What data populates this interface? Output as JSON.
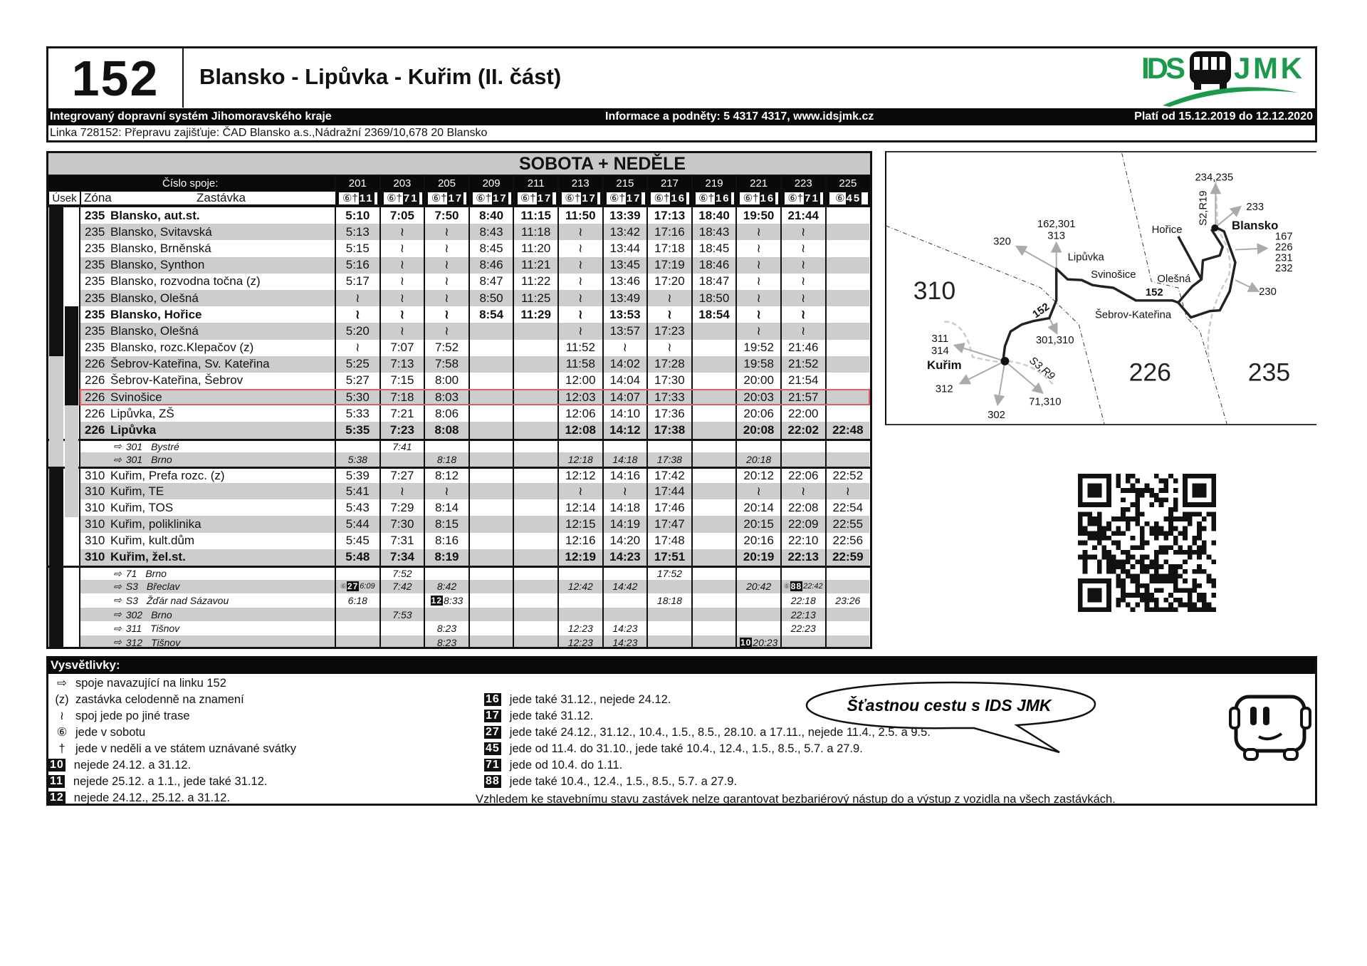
{
  "header": {
    "line_number": "152",
    "title": "Blansko - Lipůvka - Kuřim (II. část)",
    "system_name": "Integrovaný dopravní systém Jihomoravského kraje",
    "info": "Informace a podněty: 5 4317 4317, www.idsjmk.cz",
    "validity": "Platí od 15.12.2019 do 12.12.2020",
    "operator": "Linka 728152: Přepravu zajišťuje: ČAD Blansko a.s.,Nádražní 2369/10,678 20 Blansko",
    "logo_text": "IDS JMK",
    "logo_colors": {
      "green": "#1a9a4a",
      "black": "#111111"
    }
  },
  "timetable": {
    "days_title": "SOBOTA + NEDĚLE",
    "trip_label": "Číslo spoje:",
    "col_usek": "Úsek",
    "col_zona": "Zóna",
    "col_stop": "Zastávka",
    "highlight_color": "#e06060",
    "trips": [
      {
        "num": "201",
        "days": "⑥†",
        "badge": "11"
      },
      {
        "num": "203",
        "days": "⑥†",
        "badge": "71"
      },
      {
        "num": "205",
        "days": "⑥†",
        "badge": "17"
      },
      {
        "num": "209",
        "days": "⑥†",
        "badge": "17"
      },
      {
        "num": "211",
        "days": "⑥†",
        "badge": "17"
      },
      {
        "num": "213",
        "days": "⑥†",
        "badge": "17"
      },
      {
        "num": "215",
        "days": "⑥†",
        "badge": "17"
      },
      {
        "num": "217",
        "days": "⑥†",
        "badge": "16"
      },
      {
        "num": "219",
        "days": "⑥†",
        "badge": "16"
      },
      {
        "num": "221",
        "days": "⑥†",
        "badge": "16"
      },
      {
        "num": "223",
        "days": "⑥†",
        "badge": "71"
      },
      {
        "num": "225",
        "days": "⑥",
        "badge": "45"
      }
    ],
    "sections": [
      {
        "type": "stops",
        "rows": [
          {
            "zone": "235",
            "stop": "Blansko, aut.st.",
            "bold": true,
            "times": [
              "5:10",
              "7:05",
              "7:50",
              "8:40",
              "11:15",
              "11:50",
              "13:39",
              "17:13",
              "18:40",
              "19:50",
              "21:44",
              ""
            ]
          },
          {
            "zone": "235",
            "stop": "Blansko, Svitavská",
            "times": [
              "5:13",
              "≀",
              "≀",
              "8:43",
              "11:18",
              "≀",
              "13:42",
              "17:16",
              "18:43",
              "≀",
              "≀",
              ""
            ]
          },
          {
            "zone": "235",
            "stop": "Blansko, Brněnská",
            "times": [
              "5:15",
              "≀",
              "≀",
              "8:45",
              "11:20",
              "≀",
              "13:44",
              "17:18",
              "18:45",
              "≀",
              "≀",
              ""
            ]
          },
          {
            "zone": "235",
            "stop": "Blansko, Synthon",
            "times": [
              "5:16",
              "≀",
              "≀",
              "8:46",
              "11:21",
              "≀",
              "13:45",
              "17:19",
              "18:46",
              "≀",
              "≀",
              ""
            ]
          },
          {
            "zone": "235",
            "stop": "Blansko, rozvodna točna (z)",
            "times": [
              "5:17",
              "≀",
              "≀",
              "8:47",
              "11:22",
              "≀",
              "13:46",
              "17:20",
              "18:47",
              "≀",
              "≀",
              ""
            ]
          },
          {
            "zone": "235",
            "stop": "Blansko, Olešná",
            "times": [
              "≀",
              "≀",
              "≀",
              "8:50",
              "11:25",
              "≀",
              "13:49",
              "≀",
              "18:50",
              "≀",
              "≀",
              ""
            ]
          },
          {
            "zone": "235",
            "stop": "Blansko, Hořice",
            "bold": true,
            "times": [
              "≀",
              "≀",
              "≀",
              "8:54",
              "11:29",
              "≀",
              "13:53",
              "≀",
              "18:54",
              "≀",
              "≀",
              ""
            ]
          },
          {
            "zone": "235",
            "stop": "Blansko, Olešná",
            "times": [
              "5:20",
              "≀",
              "≀",
              "",
              "",
              "≀",
              "13:57",
              "17:23",
              "",
              "≀",
              "≀",
              ""
            ]
          },
          {
            "zone": "235",
            "stop": "Blansko, rozc.Klepačov (z)",
            "times": [
              "≀",
              "7:07",
              "7:52",
              "",
              "",
              "11:52",
              "≀",
              "≀",
              "",
              "19:52",
              "21:46",
              ""
            ]
          },
          {
            "zone": "226",
            "stop": "Šebrov-Kateřina, Sv. Kateřina",
            "times": [
              "5:25",
              "7:13",
              "7:58",
              "",
              "",
              "11:58",
              "14:02",
              "17:28",
              "",
              "19:58",
              "21:52",
              ""
            ]
          },
          {
            "zone": "226",
            "stop": "Šebrov-Kateřina, Šebrov",
            "times": [
              "5:27",
              "7:15",
              "8:00",
              "",
              "",
              "12:00",
              "14:04",
              "17:30",
              "",
              "20:00",
              "21:54",
              ""
            ]
          },
          {
            "zone": "226",
            "stop": "Svinošice",
            "highlighted": true,
            "times": [
              "5:30",
              "7:18",
              "8:03",
              "",
              "",
              "12:03",
              "14:07",
              "17:33",
              "",
              "20:03",
              "21:57",
              ""
            ]
          },
          {
            "zone": "226",
            "stop": "Lipůvka, ZŠ",
            "times": [
              "5:33",
              "7:21",
              "8:06",
              "",
              "",
              "12:06",
              "14:10",
              "17:36",
              "",
              "20:06",
              "22:00",
              ""
            ]
          },
          {
            "zone": "226",
            "stop": "Lipůvka",
            "bold": true,
            "times": [
              "5:35",
              "7:23",
              "8:08",
              "",
              "",
              "12:08",
              "14:12",
              "17:38",
              "",
              "20:08",
              "22:02",
              "22:48"
            ]
          }
        ]
      },
      {
        "type": "connections",
        "rows": [
          {
            "arrow": "⇨",
            "line": "301",
            "dest": "Bystré",
            "times": [
              "",
              "7:41",
              "",
              "",
              "",
              "",
              "",
              "",
              "",
              "",
              "",
              ""
            ]
          },
          {
            "arrow": "⇨",
            "line": "301",
            "dest": "Brno",
            "times": [
              "5:38",
              "",
              "8:18",
              "",
              "",
              "12:18",
              "14:18",
              "17:38",
              "",
              "20:18",
              "",
              ""
            ]
          }
        ]
      },
      {
        "type": "stops",
        "rows": [
          {
            "zone": "310",
            "stop": "Kuřim, Prefa rozc. (z)",
            "times": [
              "5:39",
              "7:27",
              "8:12",
              "",
              "",
              "12:12",
              "14:16",
              "17:42",
              "",
              "20:12",
              "22:06",
              "22:52"
            ]
          },
          {
            "zone": "310",
            "stop": "Kuřim, TE",
            "times": [
              "5:41",
              "≀",
              "≀",
              "",
              "",
              "≀",
              "≀",
              "17:44",
              "",
              "≀",
              "≀",
              "≀"
            ]
          },
          {
            "zone": "310",
            "stop": "Kuřim, TOS",
            "times": [
              "5:43",
              "7:29",
              "8:14",
              "",
              "",
              "12:14",
              "14:18",
              "17:46",
              "",
              "20:14",
              "22:08",
              "22:54"
            ]
          },
          {
            "zone": "310",
            "stop": "Kuřim, poliklinika",
            "times": [
              "5:44",
              "7:30",
              "8:15",
              "",
              "",
              "12:15",
              "14:19",
              "17:47",
              "",
              "20:15",
              "22:09",
              "22:55"
            ]
          },
          {
            "zone": "310",
            "stop": "Kuřim, kult.dům",
            "times": [
              "5:45",
              "7:31",
              "8:16",
              "",
              "",
              "12:16",
              "14:20",
              "17:48",
              "",
              "20:16",
              "22:10",
              "22:56"
            ]
          },
          {
            "zone": "310",
            "stop": "Kuřim, žel.st.",
            "bold": true,
            "times": [
              "5:48",
              "7:34",
              "8:19",
              "",
              "",
              "12:19",
              "14:23",
              "17:51",
              "",
              "20:19",
              "22:13",
              "22:59"
            ]
          }
        ]
      },
      {
        "type": "connections",
        "rows": [
          {
            "arrow": "⇨",
            "line": "71",
            "dest": "Brno",
            "times": [
              "",
              "7:52",
              "",
              "",
              "",
              "",
              "",
              "17:52",
              "",
              "",
              "",
              ""
            ]
          },
          {
            "arrow": "⇨",
            "line": "S3",
            "dest": "Břeclav",
            "times": [
              {
                "sym": "⑥",
                "badge": "27",
                "time": "6:09"
              },
              "7:42",
              "8:42",
              "",
              "",
              "12:42",
              "14:42",
              "",
              "",
              "20:42",
              {
                "sym": "⑥",
                "badge": "88",
                "time": "22:42"
              },
              ""
            ]
          },
          {
            "arrow": "⇨",
            "line": "S3",
            "dest": "Žďár nad Sázavou",
            "times": [
              "6:18",
              "",
              {
                "badge": "12",
                "time": "8:33"
              },
              "",
              "",
              "",
              "",
              "18:18",
              "",
              "",
              "22:18",
              "23:26"
            ]
          },
          {
            "arrow": "⇨",
            "line": "302",
            "dest": "Brno",
            "times": [
              "",
              "7:53",
              "",
              "",
              "",
              "",
              "",
              "",
              "",
              "",
              "22:13",
              ""
            ]
          },
          {
            "arrow": "⇨",
            "line": "311",
            "dest": "Tišnov",
            "times": [
              "",
              "",
              "8:23",
              "",
              "",
              "12:23",
              "14:23",
              "",
              "",
              "",
              "22:23",
              ""
            ]
          },
          {
            "arrow": "⇨",
            "line": "312",
            "dest": "Tišnov",
            "times": [
              "",
              "",
              "8:23",
              "",
              "",
              "12:23",
              "14:23",
              "",
              "",
              {
                "badge": "10",
                "time": "20:23"
              },
              "",
              ""
            ]
          }
        ]
      }
    ]
  },
  "map": {
    "zones": [
      "310",
      "226",
      "235"
    ],
    "places": {
      "blansko": "Blansko",
      "horice": "Hořice",
      "lipuvka": "Lipůvka",
      "svinosice": "Svinošice",
      "olesna": "Olešná",
      "sebrov": "Šebrov-Kateřina",
      "kurim": "Kuřim"
    },
    "line_labels": [
      "152",
      "152"
    ],
    "connections": {
      "blansko_north": "234,235",
      "blansko_rail": "S2,R19",
      "blansko_ne": "233",
      "blansko_east": [
        "167",
        "226",
        "231",
        "232"
      ],
      "blansko_se": "230",
      "lipuvka_north_1": "162,301",
      "lipuvka_north_2": "313",
      "lipuvka_west": "320",
      "junction_south": "301,310",
      "kurim_nw_1": "311",
      "kurim_nw_2": "314",
      "kurim_sw": "312",
      "kurim_s": "302",
      "kurim_se": "71,310",
      "kurim_rail": "S3,R9"
    }
  },
  "legend": {
    "title": "Vysvětlivky:",
    "left": [
      {
        "sym": "⇨",
        "text": "spoje navazující na linku 152"
      },
      {
        "sym": "(z)",
        "text": "zastávka celodenně na znamení"
      },
      {
        "sym": "≀",
        "text": "spoj jede po jiné trase"
      },
      {
        "sym": "⑥",
        "text": "jede v sobotu"
      },
      {
        "sym": "†",
        "text": "jede v neděli a ve státem uznávané svátky"
      },
      {
        "badge": "10",
        "text": "nejede 24.12. a 31.12."
      },
      {
        "badge": "11",
        "text": "nejede 25.12. a 1.1., jede také 31.12."
      },
      {
        "badge": "12",
        "text": "nejede 24.12., 25.12. a 31.12."
      }
    ],
    "right": [
      {
        "badge": "16",
        "text": "jede také 31.12., nejede 24.12."
      },
      {
        "badge": "17",
        "text": "jede také 31.12."
      },
      {
        "badge": "27",
        "text": "jede také 24.12., 31.12., 10.4., 1.5., 8.5., 28.10. a 17.11., nejede 11.4., 2.5. a 9.5."
      },
      {
        "badge": "45",
        "text": "jede od 11.4. do 31.10., jede také 10.4., 12.4., 1.5., 8.5., 5.7. a 27.9."
      },
      {
        "badge": "71",
        "text": "jede od 10.4. do 1.11."
      },
      {
        "badge": "88",
        "text": "jede také 10.4., 12.4., 1.5., 8.5., 5.7. a 27.9."
      }
    ],
    "note": "Vzhledem ke stavebnímu stavu zastávek nelze garantovat bezbariérový nástup do a výstup z vozidla na všech zastávkách.",
    "slogan": "Šťastnou cestu s IDS JMK"
  }
}
